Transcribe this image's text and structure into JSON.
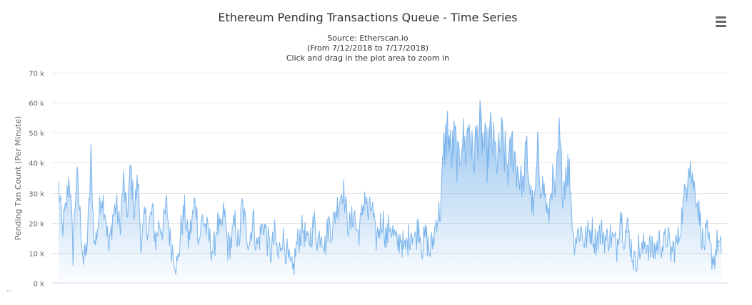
{
  "chart_data": {
    "type": "area",
    "title": "Ethereum Pending Transactions Queue - Time Series",
    "subtitle_lines": [
      "Source: Etherscan.io",
      "(From 7/12/2018 to 7/17/2018)",
      "Click and drag in the plot area to zoom in"
    ],
    "xlabel": "",
    "ylabel": "Pending Txn Count (Per Minute)",
    "ylim": [
      0,
      70000
    ],
    "yticks": [
      0,
      10000,
      20000,
      30000,
      40000,
      50000,
      60000,
      70000
    ],
    "ytick_labels": [
      "0 k",
      "10 k",
      "20 k",
      "30 k",
      "40 k",
      "50 k",
      "60 k",
      "70 k"
    ],
    "grid": true,
    "legend": "none",
    "series_color": "#7cb5ec",
    "x_start": "2018-07-12",
    "x_end": "2018-07-17",
    "anchors": [
      [
        0,
        32000
      ],
      [
        1,
        18000
      ],
      [
        2,
        24000
      ],
      [
        3,
        37000
      ],
      [
        4,
        10000
      ],
      [
        5,
        37000
      ],
      [
        6,
        22000
      ],
      [
        7,
        6000
      ],
      [
        8,
        14000
      ],
      [
        9,
        40000
      ],
      [
        10,
        12000
      ],
      [
        11,
        20000
      ],
      [
        12,
        30000
      ],
      [
        13,
        24000
      ],
      [
        14,
        10000
      ],
      [
        15,
        22000
      ],
      [
        16,
        26000
      ],
      [
        17,
        18000
      ],
      [
        18,
        34000
      ],
      [
        19,
        22000
      ],
      [
        20,
        38000
      ],
      [
        21,
        24000
      ],
      [
        22,
        34000
      ],
      [
        23,
        12000
      ],
      [
        24,
        22000
      ],
      [
        25,
        18000
      ],
      [
        26,
        24000
      ],
      [
        27,
        14000
      ],
      [
        28,
        20000
      ],
      [
        29,
        18000
      ],
      [
        30,
        26000
      ],
      [
        31,
        14000
      ],
      [
        32,
        10000
      ],
      [
        33,
        5000
      ],
      [
        34,
        18000
      ],
      [
        35,
        24000
      ],
      [
        36,
        14000
      ],
      [
        37,
        20000
      ],
      [
        38,
        28000
      ],
      [
        39,
        14000
      ],
      [
        40,
        22000
      ],
      [
        41,
        18000
      ],
      [
        42,
        14000
      ],
      [
        43,
        10000
      ],
      [
        44,
        20000
      ],
      [
        45,
        16000
      ],
      [
        46,
        24000
      ],
      [
        47,
        12000
      ],
      [
        48,
        14000
      ],
      [
        49,
        20000
      ],
      [
        50,
        12000
      ],
      [
        51,
        26000
      ],
      [
        52,
        18000
      ],
      [
        53,
        14000
      ],
      [
        54,
        22000
      ],
      [
        55,
        12000
      ],
      [
        56,
        16000
      ],
      [
        57,
        20000
      ],
      [
        58,
        14000
      ],
      [
        59,
        10000
      ],
      [
        60,
        16000
      ],
      [
        61,
        8000
      ],
      [
        62,
        16000
      ],
      [
        63,
        12000
      ],
      [
        64,
        6000
      ],
      [
        65,
        3000
      ],
      [
        66,
        12000
      ],
      [
        67,
        16000
      ],
      [
        68,
        18000
      ],
      [
        69,
        12000
      ],
      [
        70,
        16000
      ],
      [
        71,
        20000
      ],
      [
        72,
        14000
      ],
      [
        73,
        18000
      ],
      [
        74,
        12000
      ],
      [
        75,
        20000
      ],
      [
        76,
        18000
      ],
      [
        77,
        24000
      ],
      [
        78,
        28000
      ],
      [
        79,
        32000
      ],
      [
        80,
        22000
      ],
      [
        81,
        18000
      ],
      [
        82,
        24000
      ],
      [
        83,
        16000
      ],
      [
        84,
        20000
      ],
      [
        85,
        30000
      ],
      [
        86,
        22000
      ],
      [
        87,
        26000
      ],
      [
        88,
        14000
      ],
      [
        89,
        18000
      ],
      [
        90,
        22000
      ],
      [
        91,
        14000
      ],
      [
        92,
        20000
      ],
      [
        93,
        16000
      ],
      [
        94,
        12000
      ],
      [
        95,
        16000
      ],
      [
        96,
        10000
      ],
      [
        97,
        14000
      ],
      [
        98,
        18000
      ],
      [
        99,
        14000
      ],
      [
        100,
        20000
      ],
      [
        101,
        12000
      ],
      [
        102,
        16000
      ],
      [
        103,
        10000
      ],
      [
        104,
        14000
      ],
      [
        105,
        22000
      ],
      [
        106,
        24000
      ],
      [
        107,
        44000
      ],
      [
        108,
        52000
      ],
      [
        109,
        42000
      ],
      [
        110,
        48000
      ],
      [
        111,
        38000
      ],
      [
        112,
        50000
      ],
      [
        113,
        44000
      ],
      [
        114,
        54000
      ],
      [
        115,
        40000
      ],
      [
        116,
        48000
      ],
      [
        117,
        52000
      ],
      [
        118,
        46000
      ],
      [
        119,
        42000
      ],
      [
        120,
        50000
      ],
      [
        121,
        44000
      ],
      [
        122,
        40000
      ],
      [
        123,
        48000
      ],
      [
        124,
        42000
      ],
      [
        125,
        38000
      ],
      [
        126,
        46000
      ],
      [
        127,
        40000
      ],
      [
        128,
        36000
      ],
      [
        129,
        32000
      ],
      [
        130,
        44000
      ],
      [
        131,
        30000
      ],
      [
        132,
        24000
      ],
      [
        133,
        42000
      ],
      [
        134,
        34000
      ],
      [
        135,
        30000
      ],
      [
        136,
        20000
      ],
      [
        137,
        36000
      ],
      [
        138,
        28000
      ],
      [
        139,
        48000
      ],
      [
        140,
        30000
      ],
      [
        141,
        40000
      ],
      [
        142,
        34000
      ],
      [
        143,
        14000
      ],
      [
        144,
        16000
      ],
      [
        145,
        18000
      ],
      [
        146,
        14000
      ],
      [
        147,
        16000
      ],
      [
        148,
        18000
      ],
      [
        149,
        14000
      ],
      [
        150,
        16000
      ],
      [
        151,
        17000
      ],
      [
        152,
        14000
      ],
      [
        153,
        16000
      ],
      [
        154,
        14000
      ],
      [
        155,
        12000
      ],
      [
        156,
        24000
      ],
      [
        157,
        16000
      ],
      [
        158,
        18000
      ],
      [
        159,
        12000
      ],
      [
        160,
        6000
      ],
      [
        161,
        12000
      ],
      [
        162,
        10000
      ],
      [
        163,
        14000
      ],
      [
        164,
        12000
      ],
      [
        165,
        10000
      ],
      [
        166,
        12000
      ],
      [
        167,
        14000
      ],
      [
        168,
        12000
      ],
      [
        169,
        16000
      ],
      [
        170,
        10000
      ],
      [
        171,
        12000
      ],
      [
        172,
        14000
      ],
      [
        173,
        22000
      ],
      [
        174,
        30000
      ],
      [
        175,
        44000
      ],
      [
        176,
        34000
      ],
      [
        177,
        30000
      ],
      [
        178,
        22000
      ],
      [
        179,
        12000
      ],
      [
        180,
        16000
      ],
      [
        181,
        10000
      ],
      [
        182,
        8000
      ],
      [
        183,
        14000
      ],
      [
        184,
        10000
      ]
    ]
  }
}
